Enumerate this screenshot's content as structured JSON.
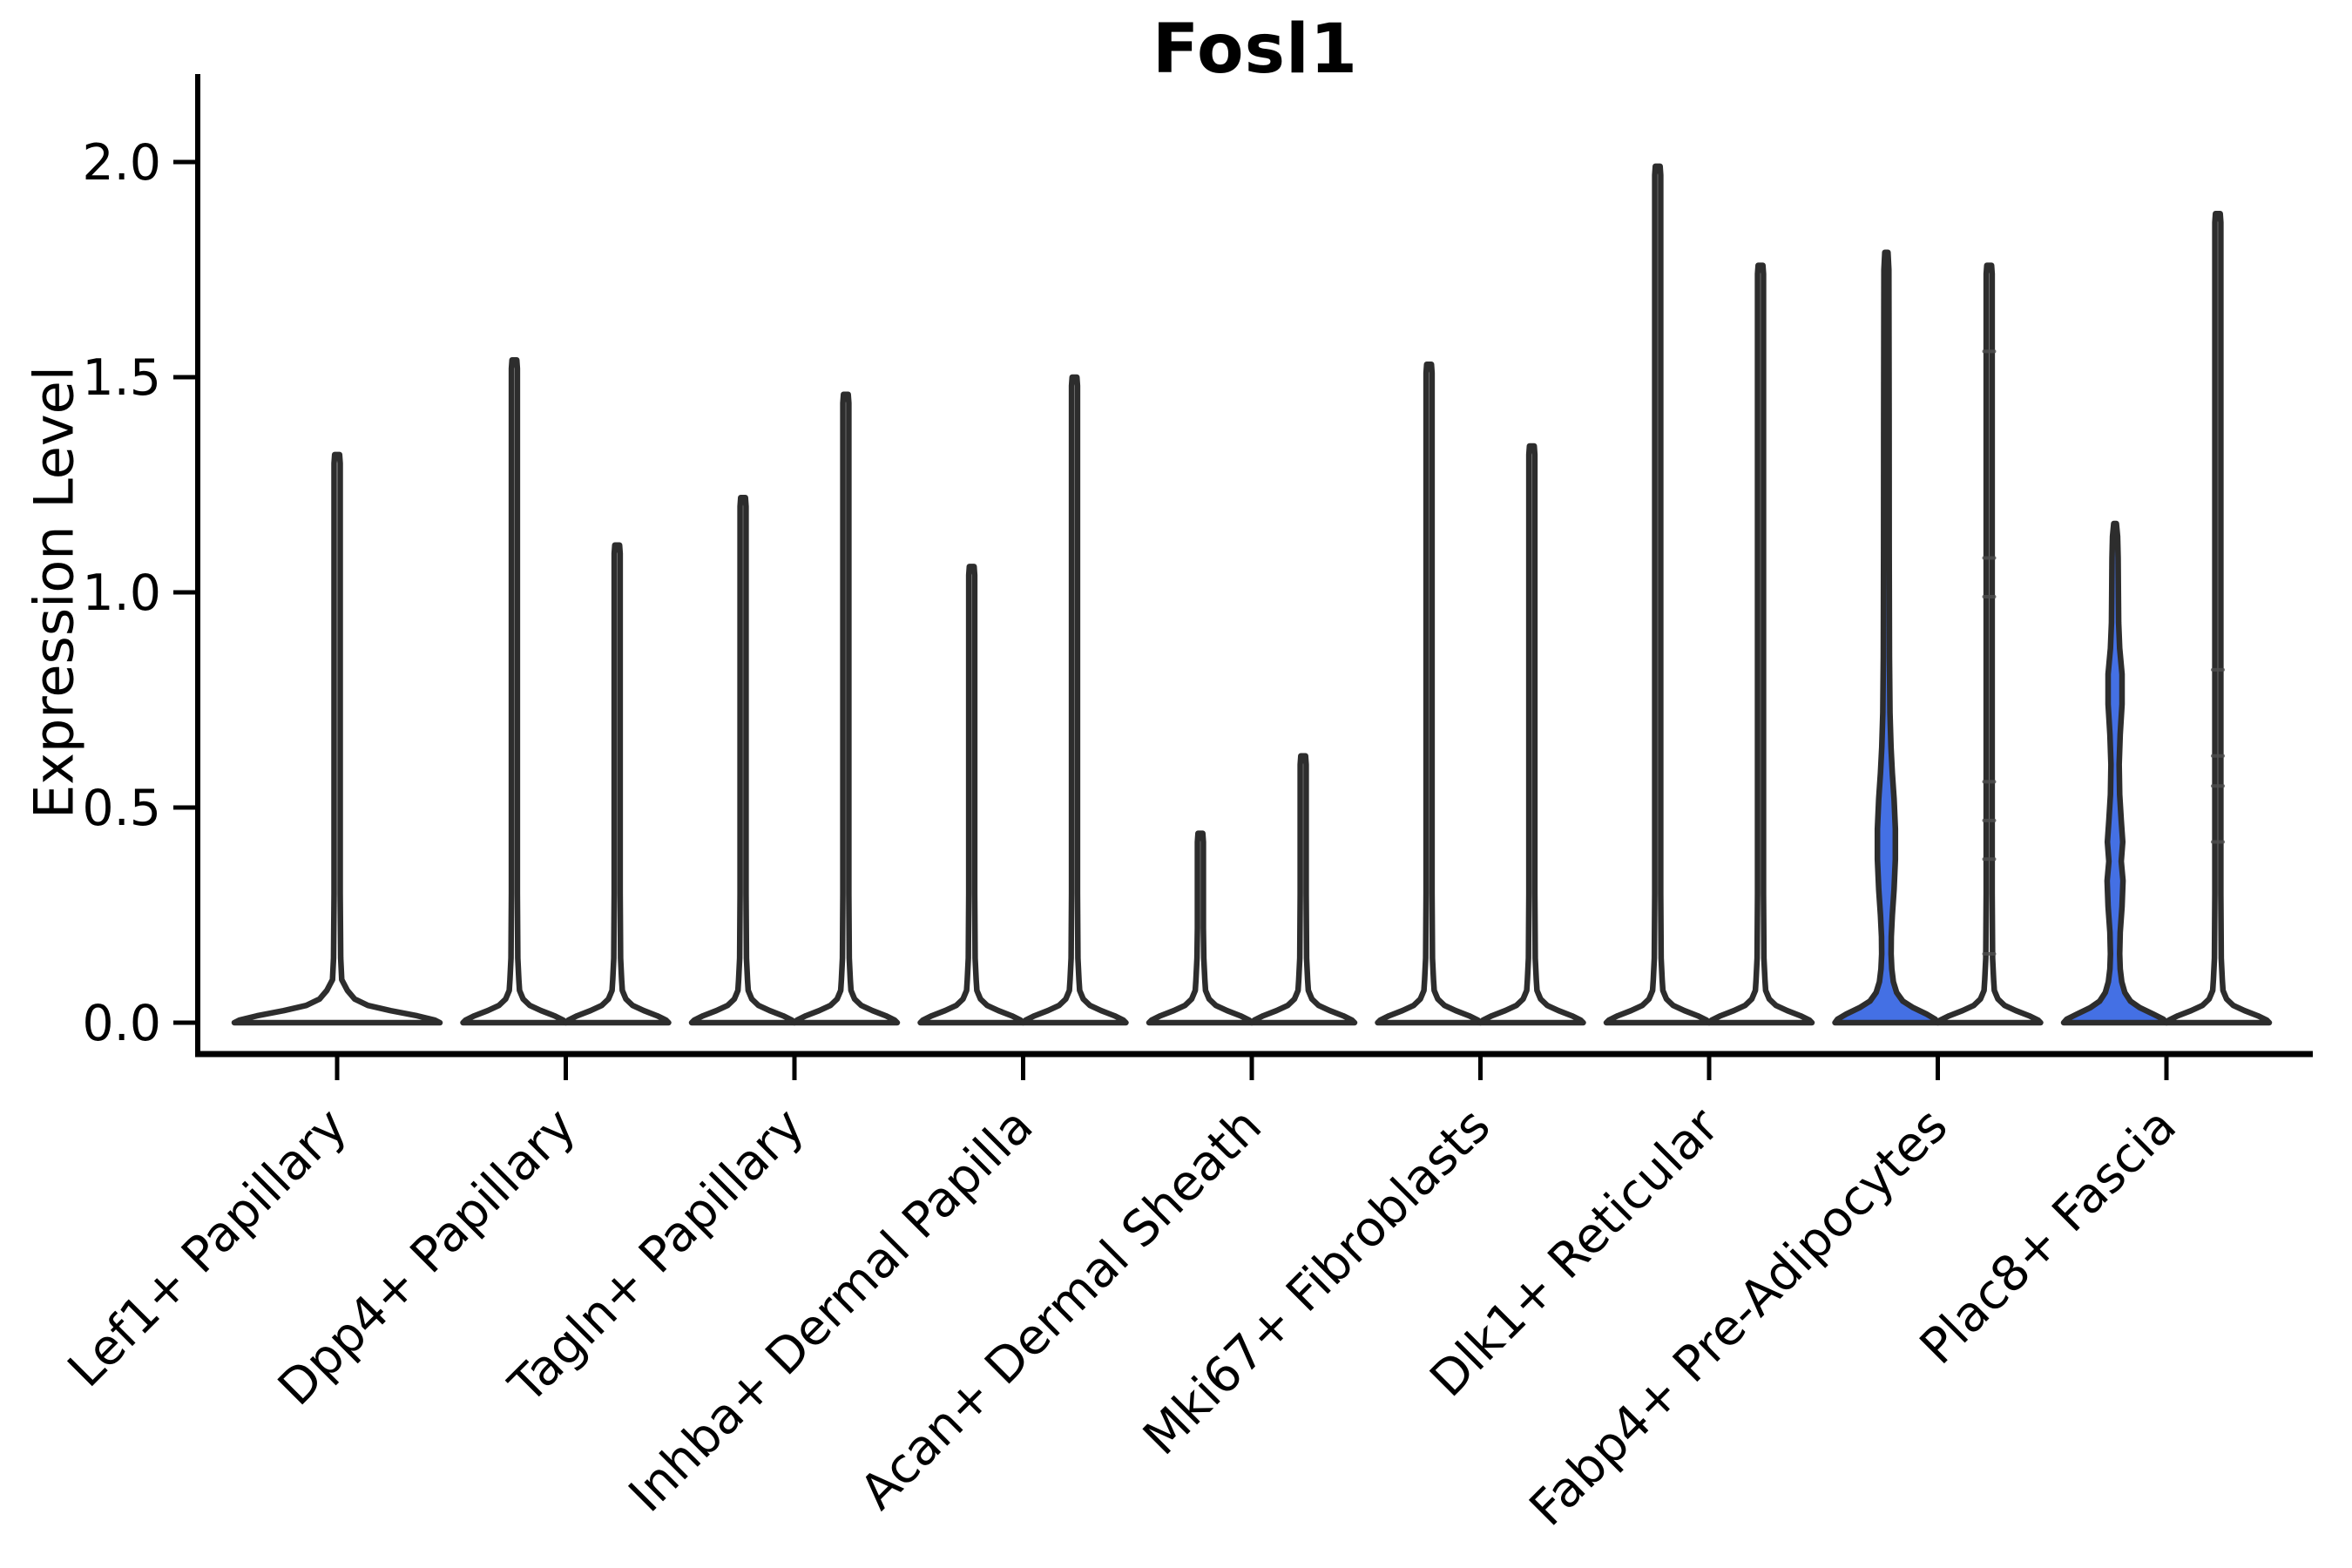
{
  "figure": {
    "title": "Fosl1",
    "ylabel": "Expression Level"
  },
  "colors": {
    "background": "#ffffff",
    "axis": "#000000",
    "violin_outline": "#2d2d2d",
    "violin_fill_plain": "#ffffff",
    "violin_fill_highlight": "#4470e4",
    "data_mark": "#4f4f4f"
  },
  "chart_data": {
    "type": "violin",
    "title": "Fosl1",
    "xlabel": "",
    "ylabel": "Expression Level",
    "ylim": [
      0,
      2.05
    ],
    "yticks": [
      0.0,
      0.5,
      1.0,
      1.5,
      2.0
    ],
    "ytick_labels": [
      "0.0",
      "0.5",
      "1.0",
      "1.5",
      "2.0"
    ],
    "grid": false,
    "legend": "none",
    "categories": [
      "Lef1+ Papillary",
      "Dpp4+ Papillary",
      "Tagln+ Papillary",
      "Inhba+ Dermal Papilla",
      "Acan+ Dermal Sheath",
      "Mki67+ Fibroblasts",
      "Dlk1+ Reticular",
      "Fabp4+ Pre-Adipocytes",
      "Plac8+ Fascia"
    ],
    "description": "Each category shows violin(s) of expression density: a wide flat base at 0 with a thin spike to the max expressed value. Fabp4+ Pre-Adipocytes and Plac8+ Fascia left violins are blue-filled with visible density bulges.",
    "series": [
      {
        "category": "Lef1+ Papillary",
        "violins": [
          {
            "position": "center",
            "max": 1.32,
            "fill": "plain",
            "style": "spike",
            "spike_w": 0.03
          }
        ]
      },
      {
        "category": "Dpp4+ Papillary",
        "violins": [
          {
            "position": "left",
            "max": 1.54,
            "fill": "plain",
            "style": "spike"
          },
          {
            "position": "right",
            "max": 1.11,
            "fill": "plain",
            "style": "spike"
          }
        ]
      },
      {
        "category": "Tagln+ Papillary",
        "violins": [
          {
            "position": "left",
            "max": 1.22,
            "fill": "plain",
            "style": "spike"
          },
          {
            "position": "right",
            "max": 1.46,
            "fill": "plain",
            "style": "spike"
          }
        ]
      },
      {
        "category": "Inhba+ Dermal Papilla",
        "violins": [
          {
            "position": "left",
            "max": 1.06,
            "fill": "plain",
            "style": "spike"
          },
          {
            "position": "right",
            "max": 1.5,
            "fill": "plain",
            "style": "spike"
          }
        ]
      },
      {
        "category": "Acan+ Dermal Sheath",
        "violins": [
          {
            "position": "left",
            "max": 0.44,
            "fill": "plain",
            "style": "spike"
          },
          {
            "position": "right",
            "max": 0.62,
            "fill": "plain",
            "style": "spike"
          }
        ]
      },
      {
        "category": "Mki67+ Fibroblasts",
        "violins": [
          {
            "position": "left",
            "max": 1.53,
            "fill": "plain",
            "style": "spike"
          },
          {
            "position": "right",
            "max": 1.34,
            "fill": "plain",
            "style": "spike"
          }
        ]
      },
      {
        "category": "Dlk1+ Reticular",
        "violins": [
          {
            "position": "left",
            "max": 1.99,
            "fill": "plain",
            "style": "spike"
          },
          {
            "position": "right",
            "max": 1.76,
            "fill": "plain",
            "style": "spike"
          }
        ]
      },
      {
        "category": "Fabp4+ Pre-Adipocytes",
        "violins": [
          {
            "position": "left",
            "max": 1.79,
            "fill": "highlight",
            "style": "density",
            "profile": [
              [
                0,
                1
              ],
              [
                0.008,
                0.95
              ],
              [
                0.02,
                0.78
              ],
              [
                0.035,
                0.52
              ],
              [
                0.05,
                0.32
              ],
              [
                0.07,
                0.2
              ],
              [
                0.095,
                0.135
              ],
              [
                0.125,
                0.105
              ],
              [
                0.16,
                0.092
              ],
              [
                0.2,
                0.095
              ],
              [
                0.25,
                0.115
              ],
              [
                0.31,
                0.15
              ],
              [
                0.38,
                0.175
              ],
              [
                0.45,
                0.175
              ],
              [
                0.52,
                0.15
              ],
              [
                0.58,
                0.115
              ],
              [
                0.64,
                0.09
              ],
              [
                0.72,
                0.07
              ],
              [
                0.85,
                0.06
              ],
              [
                1.1,
                0.055
              ],
              [
                1.4,
                0.052
              ],
              [
                1.65,
                0.05
              ],
              [
                1.75,
                0.048
              ],
              [
                1.79,
                0.03
              ],
              [
                1.79,
                0
              ]
            ]
          },
          {
            "position": "right",
            "max": 1.76,
            "fill": "plain",
            "style": "spike",
            "marks": [
              1.56,
              1.08,
              0.99,
              0.56,
              0.47,
              0.38,
              0.16
            ]
          }
        ]
      },
      {
        "category": "Plac8+ Fascia",
        "violins": [
          {
            "position": "left",
            "max": 1.16,
            "fill": "highlight",
            "style": "density",
            "profile": [
              [
                0,
                1
              ],
              [
                0.008,
                0.94
              ],
              [
                0.02,
                0.74
              ],
              [
                0.035,
                0.48
              ],
              [
                0.05,
                0.3
              ],
              [
                0.07,
                0.19
              ],
              [
                0.095,
                0.13
              ],
              [
                0.125,
                0.1
              ],
              [
                0.16,
                0.09
              ],
              [
                0.21,
                0.1
              ],
              [
                0.27,
                0.135
              ],
              [
                0.33,
                0.155
              ],
              [
                0.375,
                0.12
              ],
              [
                0.42,
                0.15
              ],
              [
                0.47,
                0.12
              ],
              [
                0.53,
                0.09
              ],
              [
                0.6,
                0.08
              ],
              [
                0.67,
                0.1
              ],
              [
                0.74,
                0.135
              ],
              [
                0.81,
                0.135
              ],
              [
                0.87,
                0.09
              ],
              [
                0.93,
                0.07
              ],
              [
                1.0,
                0.065
              ],
              [
                1.08,
                0.06
              ],
              [
                1.13,
                0.05
              ],
              [
                1.16,
                0.025
              ],
              [
                1.16,
                0
              ]
            ]
          },
          {
            "position": "right",
            "max": 1.88,
            "fill": "plain",
            "style": "spike",
            "marks": [
              0.82,
              0.62,
              0.55,
              0.42
            ]
          }
        ]
      }
    ]
  }
}
